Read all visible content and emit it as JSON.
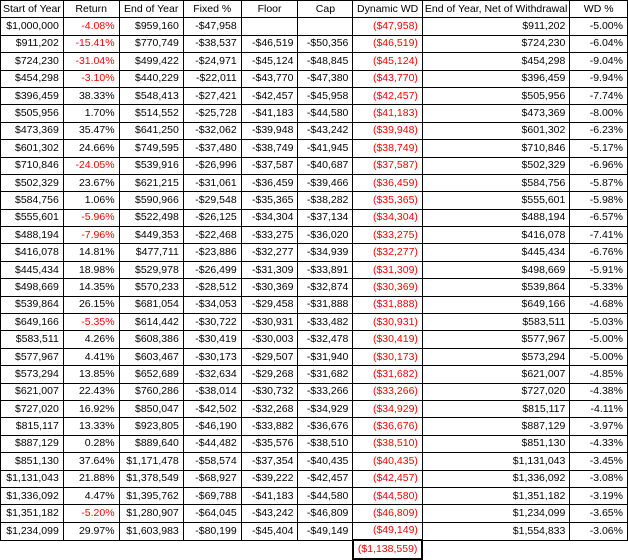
{
  "headers": [
    "Start of Year",
    "Return",
    "End of Year",
    "Fixed %",
    "Floor",
    "Cap",
    "Dynamic WD",
    "End of Year, Net of Withdrawal",
    "WD %"
  ],
  "rows": [
    [
      "$1,000,000",
      "-4.08%",
      "$959,160",
      "-$47,958",
      "",
      "",
      "($47,958)",
      "$911,202",
      "-5.00%"
    ],
    [
      "$911,202",
      "-15.41%",
      "$770,749",
      "-$38,537",
      "-$46,519",
      "-$50,356",
      "($46,519)",
      "$724,230",
      "-6.04%"
    ],
    [
      "$724,230",
      "-31.04%",
      "$499,422",
      "-$24,971",
      "-$45,124",
      "-$48,845",
      "($45,124)",
      "$454,298",
      "-9.04%"
    ],
    [
      "$454,298",
      "-3.10%",
      "$440,229",
      "-$22,011",
      "-$43,770",
      "-$47,380",
      "($43,770)",
      "$396,459",
      "-9.94%"
    ],
    [
      "$396,459",
      "38.33%",
      "$548,413",
      "-$27,421",
      "-$42,457",
      "-$45,958",
      "($42,457)",
      "$505,956",
      "-7.74%"
    ],
    [
      "$505,956",
      "1.70%",
      "$514,552",
      "-$25,728",
      "-$41,183",
      "-$44,580",
      "($41,183)",
      "$473,369",
      "-8.00%"
    ],
    [
      "$473,369",
      "35.47%",
      "$641,250",
      "-$32,062",
      "-$39,948",
      "-$43,242",
      "($39,948)",
      "$601,302",
      "-6.23%"
    ],
    [
      "$601,302",
      "24.66%",
      "$749,595",
      "-$37,480",
      "-$38,749",
      "-$41,945",
      "($38,749)",
      "$710,846",
      "-5.17%"
    ],
    [
      "$710,846",
      "-24.05%",
      "$539,916",
      "-$26,996",
      "-$37,587",
      "-$40,687",
      "($37,587)",
      "$502,329",
      "-6.96%"
    ],
    [
      "$502,329",
      "23.67%",
      "$621,215",
      "-$31,061",
      "-$36,459",
      "-$39,466",
      "($36,459)",
      "$584,756",
      "-5.87%"
    ],
    [
      "$584,756",
      "1.06%",
      "$590,966",
      "-$29,548",
      "-$35,365",
      "-$38,282",
      "($35,365)",
      "$555,601",
      "-5.98%"
    ],
    [
      "$555,601",
      "-5.96%",
      "$522,498",
      "-$26,125",
      "-$34,304",
      "-$37,134",
      "($34,304)",
      "$488,194",
      "-6.57%"
    ],
    [
      "$488,194",
      "-7.96%",
      "$449,353",
      "-$22,468",
      "-$33,275",
      "-$36,020",
      "($33,275)",
      "$416,078",
      "-7.41%"
    ],
    [
      "$416,078",
      "14.81%",
      "$477,711",
      "-$23,886",
      "-$32,277",
      "-$34,939",
      "($32,277)",
      "$445,434",
      "-6.76%"
    ],
    [
      "$445,434",
      "18.98%",
      "$529,978",
      "-$26,499",
      "-$31,309",
      "-$33,891",
      "($31,309)",
      "$498,669",
      "-5.91%"
    ],
    [
      "$498,669",
      "14.35%",
      "$570,233",
      "-$28,512",
      "-$30,369",
      "-$32,874",
      "($30,369)",
      "$539,864",
      "-5.33%"
    ],
    [
      "$539,864",
      "26.15%",
      "$681,054",
      "-$34,053",
      "-$29,458",
      "-$31,888",
      "($31,888)",
      "$649,166",
      "-4.68%"
    ],
    [
      "$649,166",
      "-5.35%",
      "$614,442",
      "-$30,722",
      "-$30,931",
      "-$33,482",
      "($30,931)",
      "$583,511",
      "-5.03%"
    ],
    [
      "$583,511",
      "4.26%",
      "$608,386",
      "-$30,419",
      "-$30,003",
      "-$32,478",
      "($30,419)",
      "$577,967",
      "-5.00%"
    ],
    [
      "$577,967",
      "4.41%",
      "$603,467",
      "-$30,173",
      "-$29,507",
      "-$31,940",
      "($30,173)",
      "$573,294",
      "-5.00%"
    ],
    [
      "$573,294",
      "13.85%",
      "$652,689",
      "-$32,634",
      "-$29,268",
      "-$31,682",
      "($31,682)",
      "$621,007",
      "-4.85%"
    ],
    [
      "$621,007",
      "22.43%",
      "$760,286",
      "-$38,014",
      "-$30,732",
      "-$33,266",
      "($33,266)",
      "$727,020",
      "-4.38%"
    ],
    [
      "$727,020",
      "16.92%",
      "$850,047",
      "-$42,502",
      "-$32,268",
      "-$34,929",
      "($34,929)",
      "$815,117",
      "-4.11%"
    ],
    [
      "$815,117",
      "13.33%",
      "$923,805",
      "-$46,190",
      "-$33,882",
      "-$36,676",
      "($36,676)",
      "$887,129",
      "-3.97%"
    ],
    [
      "$887,129",
      "0.28%",
      "$889,640",
      "-$44,482",
      "-$35,576",
      "-$38,510",
      "($38,510)",
      "$851,130",
      "-4.33%"
    ],
    [
      "$851,130",
      "37.64%",
      "$1,171,478",
      "-$58,574",
      "-$37,354",
      "-$40,435",
      "($40,435)",
      "$1,131,043",
      "-3.45%"
    ],
    [
      "$1,131,043",
      "21.88%",
      "$1,378,549",
      "-$68,927",
      "-$39,222",
      "-$42,457",
      "($42,457)",
      "$1,336,092",
      "-3.08%"
    ],
    [
      "$1,336,092",
      "4.47%",
      "$1,395,762",
      "-$69,788",
      "-$41,183",
      "-$44,580",
      "($44,580)",
      "$1,351,182",
      "-3.19%"
    ],
    [
      "$1,351,182",
      "-5.20%",
      "$1,280,907",
      "-$64,045",
      "-$43,242",
      "-$46,809",
      "($46,809)",
      "$1,234,099",
      "-3.65%"
    ],
    [
      "$1,234,099",
      "29.97%",
      "$1,603,983",
      "-$80,199",
      "-$45,404",
      "-$49,149",
      "($49,149)",
      "$1,554,833",
      "-3.06%"
    ]
  ],
  "total_dynamic_wd": "($1,138,559)",
  "colors": {
    "negative": "#ff0000",
    "text": "#000000",
    "grid": "#000000"
  }
}
